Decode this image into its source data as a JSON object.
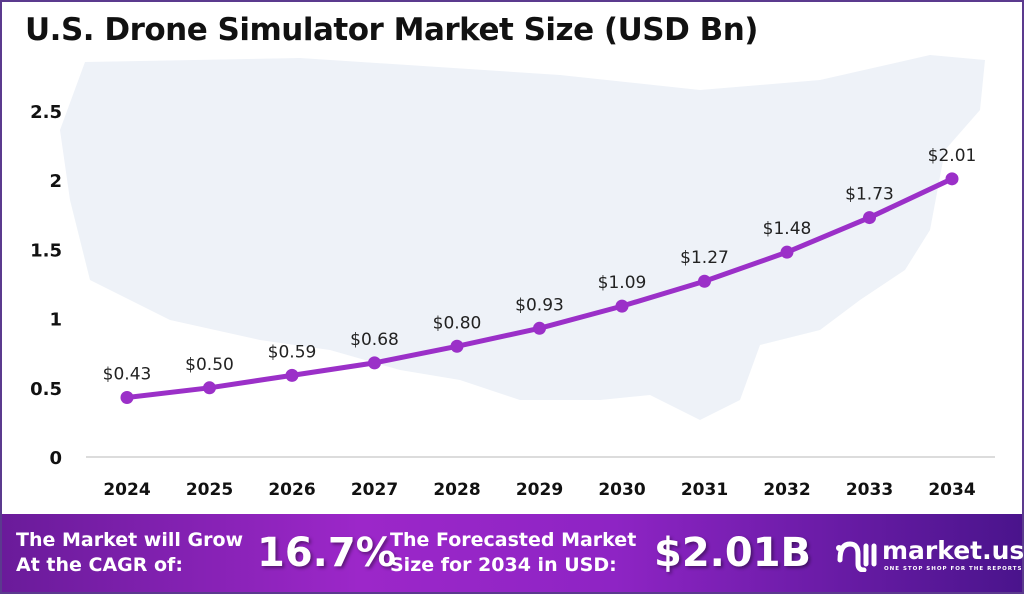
{
  "chart_data": {
    "type": "line",
    "title": "U.S. Drone Simulator Market Size (USD Bn)",
    "xlabel": "",
    "ylabel": "",
    "categories": [
      "2024",
      "2025",
      "2026",
      "2027",
      "2028",
      "2029",
      "2030",
      "2031",
      "2032",
      "2033",
      "2034"
    ],
    "values": [
      0.43,
      0.5,
      0.59,
      0.68,
      0.8,
      0.93,
      1.09,
      1.27,
      1.48,
      1.73,
      2.01
    ],
    "data_labels": [
      "$0.43",
      "$0.50",
      "$0.59",
      "$0.68",
      "$0.80",
      "$0.93",
      "$1.09",
      "$1.27",
      "$1.48",
      "$1.73",
      "$2.01"
    ],
    "yticks": [
      "0",
      "0.5",
      "1",
      "1.5",
      "2",
      "2.5"
    ],
    "ylim": [
      0,
      2.5
    ],
    "grid": false,
    "line_color": "#9b30c8",
    "background_map": "united-states-silhouette"
  },
  "footer": {
    "cagr_label_1": "The Market will Grow",
    "cagr_label_2": "At the CAGR of:",
    "cagr_value": "16.7%",
    "forecast_label_1": "The Forecasted Market",
    "forecast_label_2": "Size for 2034 in USD:",
    "forecast_value": "$2.01B",
    "brand": "market.us",
    "tagline": "ONE STOP SHOP FOR THE REPORTS"
  }
}
